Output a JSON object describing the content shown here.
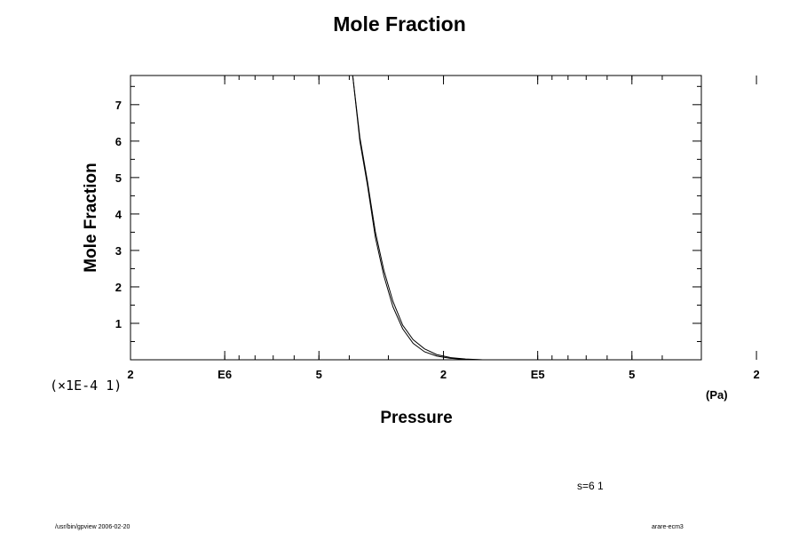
{
  "chart_data": {
    "type": "line",
    "title": "Mole Fraction",
    "xlabel": "Pressure",
    "ylabel": "Mole Fraction",
    "x_unit": "(Pa)",
    "y_scale_note": "(×1E-4 1)",
    "x_scale": "log-reversed",
    "xlim": [
      2000000,
      30000
    ],
    "ylim": [
      0,
      7.8
    ],
    "x_ticks": [
      {
        "value": 2000000,
        "label": "2"
      },
      {
        "value": 1000000,
        "label": "E6"
      },
      {
        "value": 500000,
        "label": "5"
      },
      {
        "value": 200000,
        "label": "2"
      },
      {
        "value": 100000,
        "label": "E5"
      },
      {
        "value": 50000,
        "label": "5"
      },
      {
        "value": 20000,
        "label": "2"
      }
    ],
    "y_ticks": [
      1,
      2,
      3,
      4,
      5,
      6,
      7
    ],
    "grid": false,
    "series": [
      {
        "x": [
          390000,
          370000,
          350000,
          330000,
          310000,
          290000,
          270000,
          250000,
          230000,
          210000,
          190000,
          170000,
          150000
        ],
        "y": [
          7.8,
          6.1,
          4.9,
          3.5,
          2.45,
          1.6,
          0.95,
          0.55,
          0.3,
          0.14,
          0.06,
          0.02,
          0.0
        ]
      },
      {
        "x": [
          390000,
          370000,
          350000,
          330000,
          310000,
          290000,
          270000,
          250000,
          230000,
          210000,
          190000,
          170000,
          150000
        ],
        "y": [
          7.8,
          6.0,
          4.8,
          3.35,
          2.3,
          1.45,
          0.85,
          0.45,
          0.22,
          0.1,
          0.04,
          0.01,
          0.0
        ]
      }
    ]
  },
  "annotations": {
    "run_label": "s=6 1",
    "footer_left": "/usr/bin/gpview 2006-02-20",
    "footer_right": "arare-ecm3"
  }
}
